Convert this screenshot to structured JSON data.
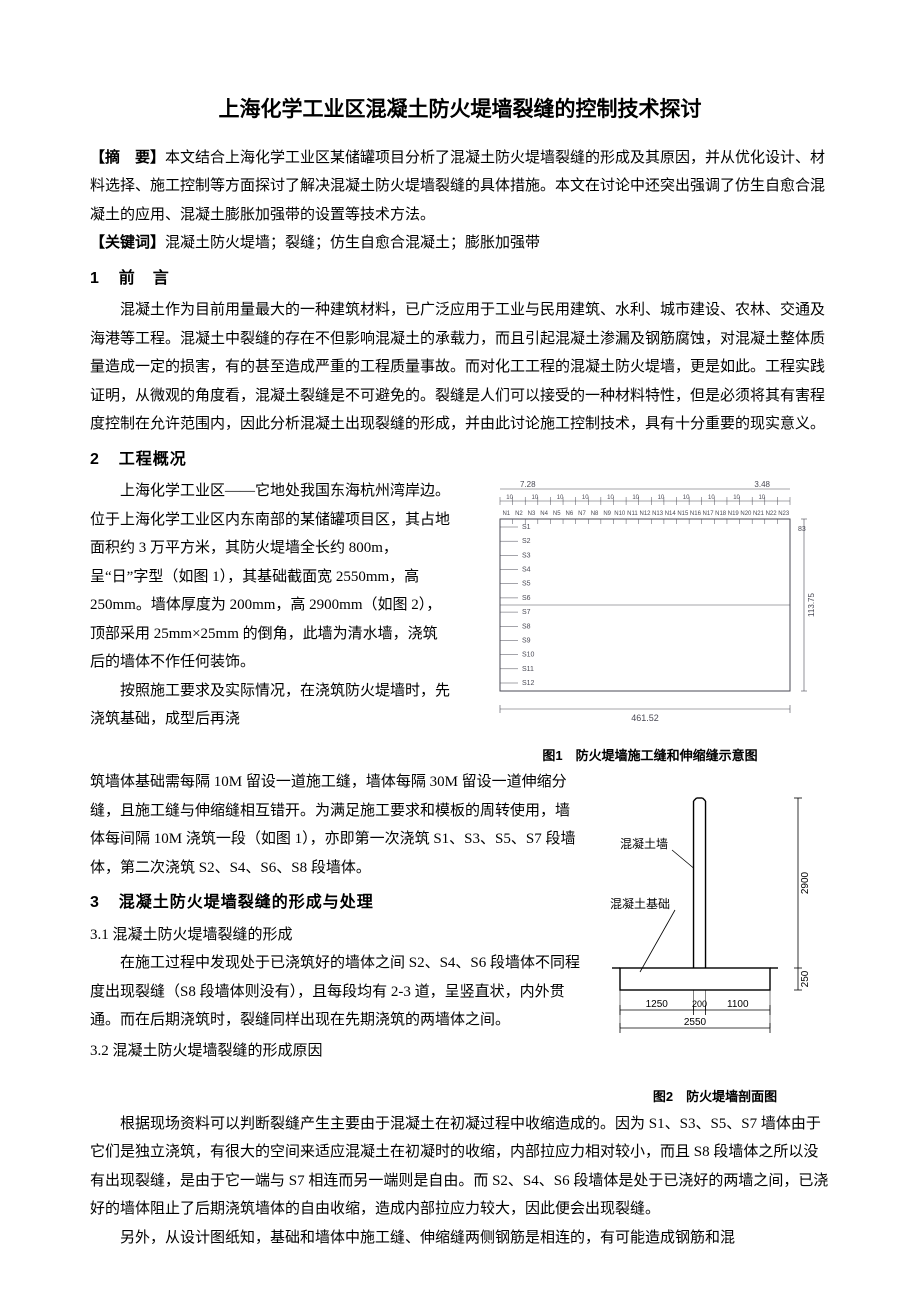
{
  "title": "上海化学工业区混凝土防火堤墙裂缝的控制技术探讨",
  "abstract": {
    "label": "【摘　要】",
    "text": "本文结合上海化学工业区某储罐项目分析了混凝土防火堤墙裂缝的形成及其原因，并从优化设计、材料选择、施工控制等方面探讨了解决混凝土防火堤墙裂缝的具体措施。本文在讨论中还突出强调了仿生自愈合混凝土的应用、混凝土膨胀加强带的设置等技术方法。"
  },
  "keywords": {
    "label": "【关键词】",
    "text": "混凝土防火堤墙；裂缝；仿生自愈合混凝土；膨胀加强带"
  },
  "sec1": {
    "num": "1",
    "title": "前　言",
    "p1": "混凝土作为目前用量最大的一种建筑材料，已广泛应用于工业与民用建筑、水利、城市建设、农林、交通及海港等工程。混凝土中裂缝的存在不但影响混凝土的承载力，而且引起混凝土渗漏及钢筋腐蚀，对混凝土整体质量造成一定的损害，有的甚至造成严重的工程质量事故。而对化工工程的混凝土防火堤墙，更是如此。工程实践证明，从微观的角度看，混凝土裂缝是不可避免的。裂缝是人们可以接受的一种材料特性，但是必须将其有害程度控制在允许范围内，因此分析混凝土出现裂缝的形成，并由此讨论施工控制技术，具有十分重要的现实意义。"
  },
  "sec2": {
    "num": "2",
    "title": "工程概况",
    "p1": "上海化学工业区——它地处我国东海杭州湾岸边。位于上海化学工业区内东南部的某储罐项目区，其占地面积约 3 万平方米，其防火堤墙全长约 800m，呈“日”字型（如图 1），其基础截面宽 2550mm，高 250mm。墙体厚度为 200mm，高 2900mm（如图 2），顶部采用 25mm×25mm 的倒角，此墙为清水墙，浇筑后的墙体不作任何装饰。",
    "p2a": "按照施工要求及实际情况，在浇筑防火堤墙时，先浇筑基础，成型后再浇",
    "p2b": "筑墙体基础需每隔 10M 留设一道施工缝，墙体每隔 30M 留设一道伸缩分缝，且施工缝与伸缩缝相互错开。为满足施工要求和模板的周转使用，墙体每间隔 10M 浇筑一段（如图 1），亦即第一次浇筑 S1、S3、S5、S7 段墙体，第二次浇筑 S2、S4、S6、S8 段墙体。"
  },
  "sec3": {
    "num": "3",
    "title": "混凝土防火堤墙裂缝的形成与处理",
    "sub31": "3.1 混凝土防火堤墙裂缝的形成",
    "p31": "在施工过程中发现处于已浇筑好的墙体之间 S2、S4、S6 段墙体不同程度出现裂缝（S8 段墙体则没有），且每段均有 2-3 道，呈竖直状，内外贯通。而在后期浇筑时，裂缝同样出现在先期浇筑的两墙体之间。",
    "sub32": "3.2 混凝土防火堤墙裂缝的形成原因",
    "p32a": "根据现场资料可以判断裂缝产生主要由于混凝土在初凝过程中收缩造成的。因为 S1、S3、S5、S7 墙体由于它们是独立浇筑，有很大的空间来适应混凝土在初凝时的收缩，内部拉应力相对较小，而且 S8 段墙体之所以没有出现裂缝，是由于它一端与 S7 相连而另一端则是自由。而 S2、S4、S6 段墙体是处于已浇好的两墙之间，已浇好的墙体阻止了后期浇筑墙体的自由收缩，造成内部拉应力较大，因此便会出现裂缝。",
    "p32b": "另外，从设计图纸知，基础和墙体中施工缝、伸缩缝两侧钢筋是相连的，有可能造成钢筋和混"
  },
  "fig1": {
    "type": "schematic-plan",
    "caption": "图1　防火堤墙施工缝和伸缩缝示意图",
    "dims_top": [
      "7.28",
      "3.48"
    ],
    "core_dim": "10",
    "bottom_dim": "461.52",
    "right_dim": "113.75",
    "right_sub": "83",
    "n_labels": [
      "N1",
      "N2",
      "N3",
      "N4",
      "N5",
      "N6",
      "N7",
      "N8",
      "N9",
      "N10",
      "N11",
      "N12",
      "N13",
      "N14",
      "N15",
      "N16",
      "N17",
      "N18",
      "N19",
      "N20",
      "N21",
      "N22",
      "N23"
    ],
    "s_labels": [
      "S1",
      "S2",
      "S3",
      "S4",
      "S5",
      "S6",
      "S7",
      "S8",
      "S9",
      "S10",
      "S11",
      "S12"
    ],
    "stroke": "#4a4a55",
    "text_fill": "#4a4a55"
  },
  "fig2": {
    "type": "section",
    "caption": "图2　防火堤墙剖面图",
    "label_wall": "混凝土墙",
    "label_base": "混凝土基础",
    "dim_h_wall": "2900",
    "dim_h_base": "250",
    "dim_w1": "1250",
    "dim_w2": "200",
    "dim_w3": "1100",
    "dim_total": "2550",
    "stroke": "#000000"
  }
}
